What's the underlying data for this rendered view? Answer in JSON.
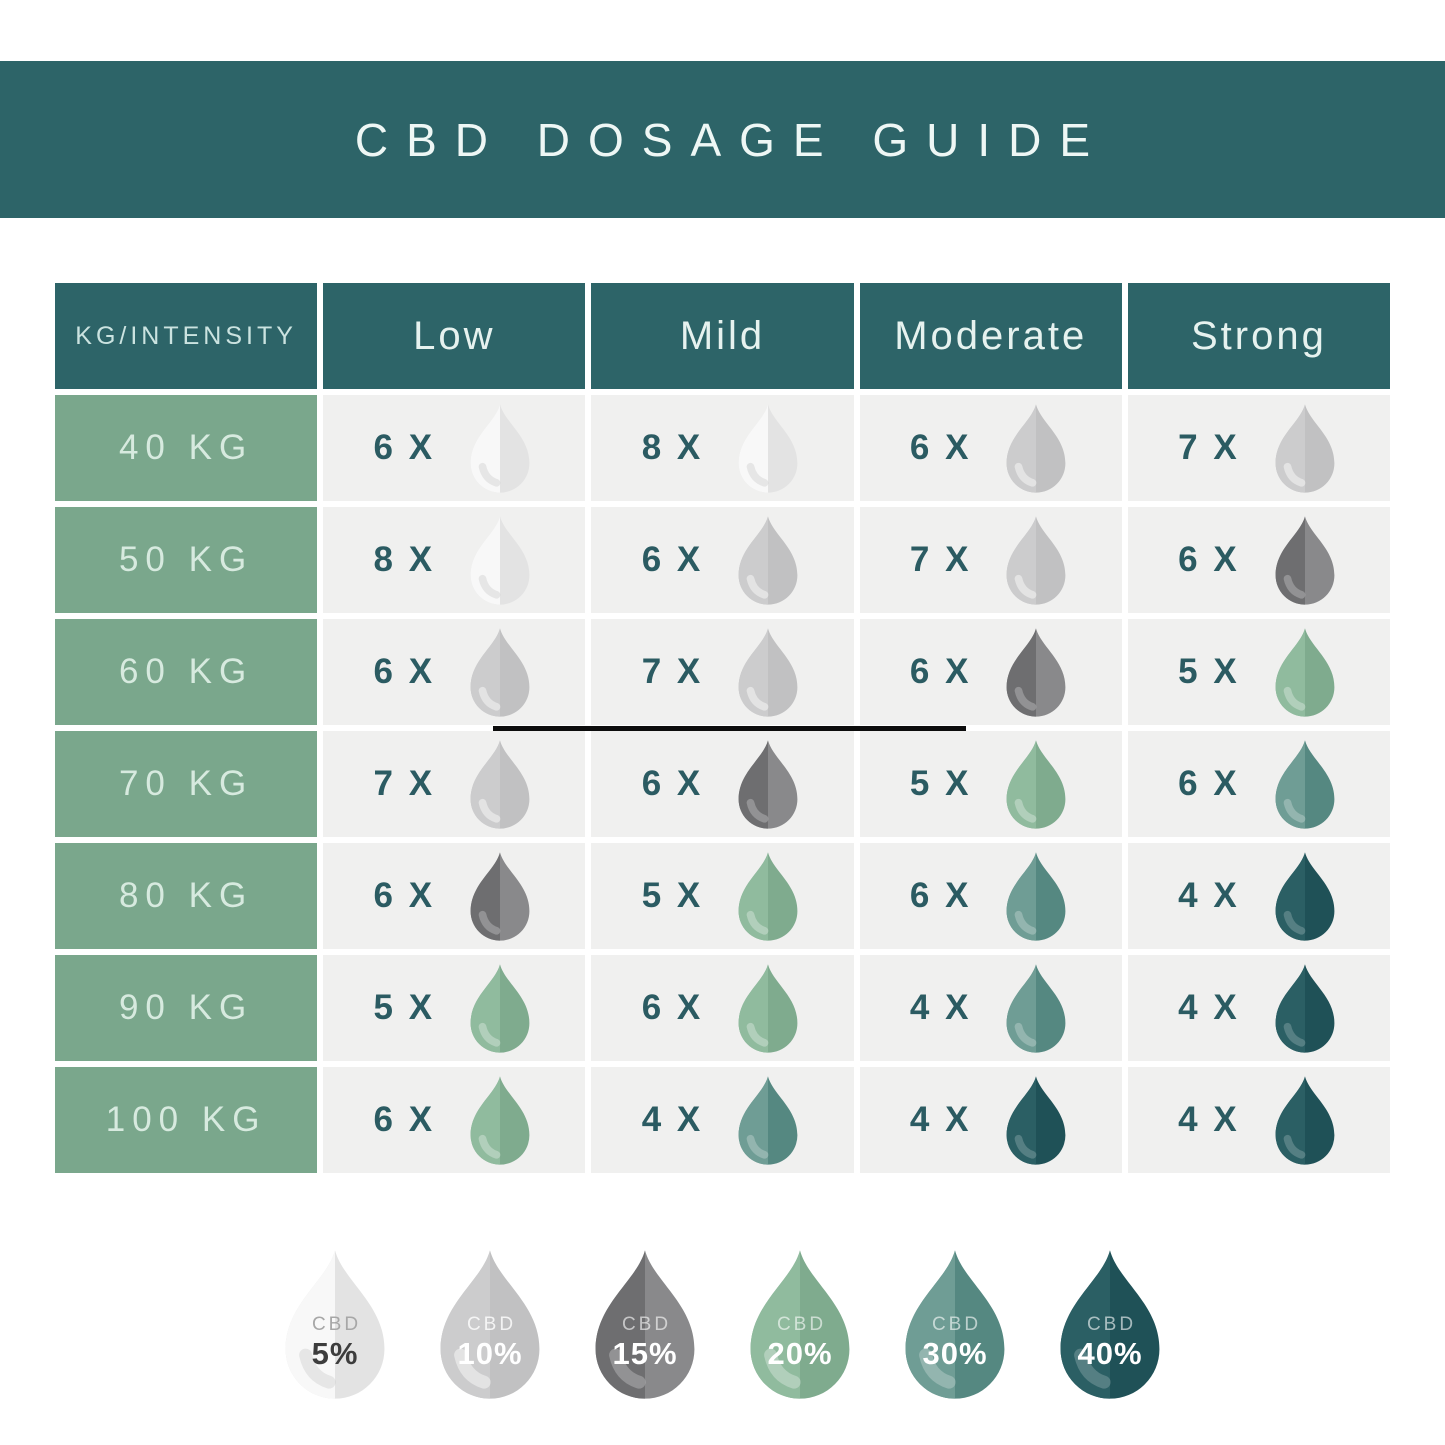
{
  "title": "CBD DOSAGE GUIDE",
  "colors": {
    "banner_teal": "#2d6468",
    "row_label_green": "#7aa78c",
    "data_cell_gray": "#f0f0ef",
    "count_text_teal": "#2b5b62",
    "header_text": "#e6f2ef",
    "row_label_text": "#d7eadf",
    "divider_black": "#0d0d0d"
  },
  "drop_styles": {
    "5%": {
      "left": "#f8f8f8",
      "right": "#e3e3e3",
      "swoosh": "rgba(0,0,0,0.07)"
    },
    "10%": {
      "left": "#cccccd",
      "right": "#c1c1c2",
      "swoosh": "rgba(255,255,255,0.45)"
    },
    "15%": {
      "left": "#6e6e70",
      "right": "#89898b",
      "swoosh": "rgba(255,255,255,0.25)"
    },
    "20%": {
      "left": "#90bb9e",
      "right": "#7fab8e",
      "swoosh": "rgba(255,255,255,0.30)"
    },
    "30%": {
      "left": "#6f9d95",
      "right": "#558881",
      "swoosh": "rgba(255,255,255,0.25)"
    },
    "40%": {
      "left": "#2b5f64",
      "right": "#1f5157",
      "swoosh": "rgba(255,255,255,0.20)"
    }
  },
  "chart_data": {
    "type": "table",
    "title": "CBD DOSAGE GUIDE",
    "columns": [
      "KG/INTENSITY",
      "Low",
      "Mild",
      "Moderate",
      "Strong"
    ],
    "rows": [
      {
        "weight": "40 KG",
        "cells": [
          {
            "label": "6 X",
            "cbd": "5%"
          },
          {
            "label": "8 X",
            "cbd": "5%"
          },
          {
            "label": "6 X",
            "cbd": "10%"
          },
          {
            "label": "7 X",
            "cbd": "10%"
          }
        ]
      },
      {
        "weight": "50 KG",
        "cells": [
          {
            "label": "8 X",
            "cbd": "5%"
          },
          {
            "label": "6 X",
            "cbd": "10%"
          },
          {
            "label": "7 X",
            "cbd": "10%"
          },
          {
            "label": "6 X",
            "cbd": "15%"
          }
        ]
      },
      {
        "weight": "60 KG",
        "cells": [
          {
            "label": "6 X",
            "cbd": "10%"
          },
          {
            "label": "7 X",
            "cbd": "10%"
          },
          {
            "label": "6 X",
            "cbd": "15%"
          },
          {
            "label": "5 X",
            "cbd": "20%"
          }
        ]
      },
      {
        "weight": "70 KG",
        "cells": [
          {
            "label": "7 X",
            "cbd": "10%"
          },
          {
            "label": "6 X",
            "cbd": "15%"
          },
          {
            "label": "5 X",
            "cbd": "20%"
          },
          {
            "label": "6 X",
            "cbd": "30%"
          }
        ]
      },
      {
        "weight": "80 KG",
        "cells": [
          {
            "label": "6 X",
            "cbd": "15%"
          },
          {
            "label": "5 X",
            "cbd": "20%"
          },
          {
            "label": "6 X",
            "cbd": "30%"
          },
          {
            "label": "4 X",
            "cbd": "40%"
          }
        ]
      },
      {
        "weight": "90 KG",
        "cells": [
          {
            "label": "5 X",
            "cbd": "20%"
          },
          {
            "label": "6 X",
            "cbd": "20%"
          },
          {
            "label": "4 X",
            "cbd": "30%"
          },
          {
            "label": "4 X",
            "cbd": "40%"
          }
        ]
      },
      {
        "weight": "100 KG",
        "cells": [
          {
            "label": "6 X",
            "cbd": "20%"
          },
          {
            "label": "4 X",
            "cbd": "30%"
          },
          {
            "label": "4 X",
            "cbd": "40%"
          },
          {
            "label": "4 X",
            "cbd": "40%"
          }
        ]
      }
    ],
    "legend": [
      {
        "name": "CBD",
        "percent": "5%",
        "cbd_color": "#a7a7a7",
        "pct_color": "#3d3d3d"
      },
      {
        "name": "CBD",
        "percent": "10%",
        "cbd_color": "rgba(255,255,255,0.8)",
        "pct_color": "#ffffff"
      },
      {
        "name": "CBD",
        "percent": "15%",
        "cbd_color": "rgba(255,255,255,0.6)",
        "pct_color": "#ffffff"
      },
      {
        "name": "CBD",
        "percent": "20%",
        "cbd_color": "rgba(255,255,255,0.6)",
        "pct_color": "#ffffff"
      },
      {
        "name": "CBD",
        "percent": "30%",
        "cbd_color": "rgba(255,255,255,0.6)",
        "pct_color": "#ffffff"
      },
      {
        "name": "CBD",
        "percent": "40%",
        "cbd_color": "rgba(255,255,255,0.6)",
        "pct_color": "#ffffff"
      }
    ]
  }
}
